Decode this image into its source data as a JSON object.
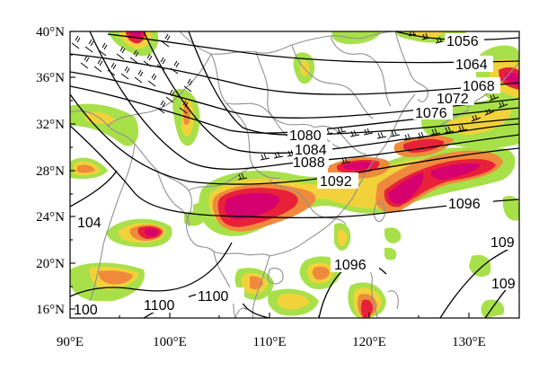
{
  "map": {
    "x_ticks": [
      "90°E",
      "100°E",
      "110°E",
      "120°E",
      "130°E"
    ],
    "y_ticks": [
      "16°N",
      "20°N",
      "24°N",
      "28°N",
      "32°N",
      "36°N",
      "40°N"
    ],
    "lon_range": [
      90,
      135
    ],
    "lat_range": [
      15,
      40
    ],
    "grid": false,
    "colors": {
      "shade_light": "#a8e04a",
      "shade_mid": "#f2d23a",
      "shade_orange": "#ef8a3c",
      "shade_red": "#e8203a",
      "shade_core": "#d6006e",
      "contour": "#000000",
      "borders": "#909090"
    },
    "contour_labels": [
      "1056",
      "1064",
      "1068",
      "1072",
      "1076",
      "1080",
      "1084",
      "1088",
      "1092",
      "1096",
      "104",
      "1100",
      "1100",
      "100",
      "1096",
      "109",
      "109"
    ]
  }
}
